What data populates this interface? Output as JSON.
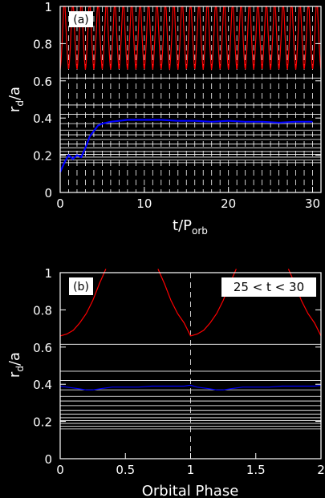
{
  "colors": {
    "background": "#000000",
    "axes": "#ffffff",
    "red_series": "#ff0000",
    "blue_series": "#0000ff",
    "label_box": "#ffffff",
    "label_text": "#000000"
  },
  "chart_data": [
    {
      "panel_label": "(a)",
      "type": "line",
      "xlabel": "t/P",
      "xlabel_sub": "orb",
      "ylabel": "r",
      "ylabel_sub": "d",
      "ylabel_tail": "/a",
      "xlim": [
        0,
        31
      ],
      "ylim": [
        0,
        1
      ],
      "xticks": [
        0,
        10,
        20,
        30
      ],
      "xtick_labels": [
        "0",
        "10",
        "20",
        "30"
      ],
      "yticks": [
        0,
        0.2,
        0.4,
        0.6,
        0.8,
        1
      ],
      "ytick_labels": [
        "0",
        "0.2",
        "0.4",
        "0.6",
        "0.8",
        "1"
      ],
      "vertical_dashed_lines": [
        1,
        2,
        3,
        4,
        5,
        6,
        7,
        8,
        9,
        10,
        11,
        12,
        13,
        14,
        15,
        16,
        17,
        18,
        19,
        20,
        21,
        22,
        23,
        24,
        25,
        26,
        27,
        28,
        29,
        30
      ],
      "horizontal_lines": [
        0.16,
        0.175,
        0.19,
        0.205,
        0.22,
        0.24,
        0.26,
        0.285,
        0.31,
        0.335,
        0.37,
        0.42,
        0.47,
        0.615
      ],
      "series": [
        {
          "color": "red",
          "style": "periodic cusps",
          "period": 1,
          "min": 0.66,
          "max": 1.0
        },
        {
          "color": "blue",
          "x": [
            0,
            0.3,
            0.6,
            1,
            1.5,
            2,
            2.5,
            3,
            3.5,
            4,
            4.5,
            5,
            6,
            7,
            8,
            9,
            10,
            12,
            14,
            16,
            18,
            20,
            22,
            24,
            26,
            28,
            30
          ],
          "y": [
            0.11,
            0.14,
            0.17,
            0.2,
            0.18,
            0.2,
            0.19,
            0.24,
            0.3,
            0.33,
            0.36,
            0.37,
            0.38,
            0.385,
            0.39,
            0.39,
            0.39,
            0.39,
            0.385,
            0.385,
            0.38,
            0.385,
            0.38,
            0.38,
            0.375,
            0.38,
            0.38
          ]
        }
      ]
    },
    {
      "panel_label": "(b)",
      "annotation": "25 < t < 30",
      "type": "line",
      "xlabel": "Orbital Phase",
      "ylabel": "r",
      "ylabel_sub": "d",
      "ylabel_tail": "/a",
      "xlim": [
        0,
        2
      ],
      "ylim": [
        0,
        1
      ],
      "xticks": [
        0,
        0.5,
        1,
        1.5,
        2
      ],
      "xtick_labels": [
        "0",
        "0.5",
        "1",
        "1.5",
        "2"
      ],
      "yticks": [
        0,
        0.2,
        0.4,
        0.6,
        0.8,
        1
      ],
      "ytick_labels": [
        "0",
        "0.2",
        "0.4",
        "0.6",
        "0.8",
        "1"
      ],
      "vertical_dashed_lines": [
        1
      ],
      "horizontal_lines": [
        0.16,
        0.175,
        0.19,
        0.205,
        0.22,
        0.24,
        0.26,
        0.285,
        0.31,
        0.335,
        0.37,
        0.42,
        0.47,
        0.615
      ],
      "series": [
        {
          "color": "red",
          "x": [
            0,
            0.05,
            0.1,
            0.15,
            0.2,
            0.25,
            0.3,
            0.35,
            0.4,
            0.45,
            0.5,
            0.55,
            0.6,
            0.65,
            0.7,
            0.75,
            0.8,
            0.85,
            0.9,
            0.95,
            1,
            1.05,
            1.1,
            1.15,
            1.2,
            1.25,
            1.3,
            1.35,
            1.4,
            1.45,
            1.5,
            1.55,
            1.6,
            1.65,
            1.7,
            1.75,
            1.8,
            1.85,
            1.9,
            1.95,
            2
          ],
          "y": [
            0.66,
            0.67,
            0.69,
            0.73,
            0.78,
            0.85,
            0.94,
            1.05,
            null,
            null,
            null,
            null,
            null,
            null,
            null,
            1.05,
            0.94,
            0.85,
            0.78,
            0.73,
            0.66,
            0.67,
            0.69,
            0.73,
            0.78,
            0.85,
            0.94,
            1.05,
            null,
            null,
            null,
            null,
            null,
            null,
            null,
            1.05,
            0.94,
            0.85,
            0.78,
            0.73,
            0.66
          ]
        },
        {
          "color": "blue",
          "x": [
            0,
            0.05,
            0.1,
            0.15,
            0.2,
            0.25,
            0.3,
            0.35,
            0.4,
            0.5,
            0.6,
            0.7,
            0.8,
            0.9,
            0.95,
            1,
            1.05,
            1.1,
            1.15,
            1.2,
            1.25,
            1.3,
            1.35,
            1.4,
            1.5,
            1.6,
            1.7,
            1.8,
            1.9,
            1.95,
            2
          ],
          "y": [
            0.39,
            0.385,
            0.38,
            0.375,
            0.37,
            0.37,
            0.375,
            0.38,
            0.385,
            0.385,
            0.385,
            0.39,
            0.39,
            0.39,
            0.39,
            0.395,
            0.385,
            0.38,
            0.375,
            0.37,
            0.37,
            0.375,
            0.38,
            0.385,
            0.385,
            0.385,
            0.39,
            0.39,
            0.39,
            0.39,
            0.395
          ]
        }
      ]
    }
  ]
}
